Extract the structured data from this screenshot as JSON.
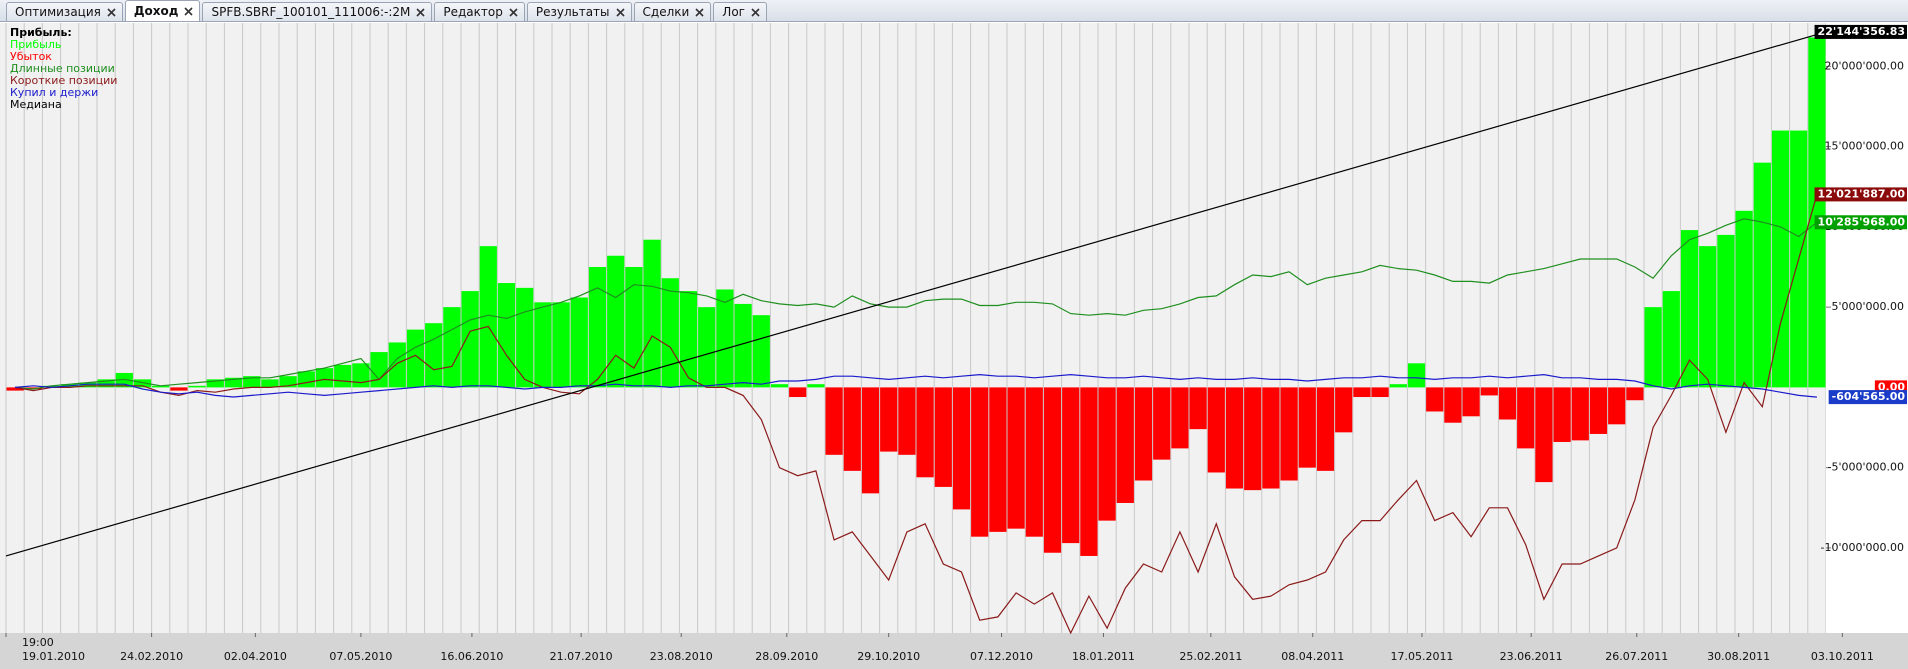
{
  "tabs": [
    "Оптимизация",
    "Доход",
    "SPFB.SBRF_100101_111006:-:2M",
    "Редактор",
    "Результаты",
    "Сделки",
    "Лог"
  ],
  "active_tab": 1,
  "chart_data": {
    "type": "bar",
    "legend_title": "Прибыль:",
    "xlim": [
      0,
      100
    ],
    "x_time_label": "19:00",
    "xticks": [
      {
        "value": 0,
        "label": "19.01.2010"
      },
      {
        "value": 8.0,
        "label": "24.02.2010"
      },
      {
        "value": 13.7,
        "label": "02.04.2010"
      },
      {
        "value": 19.5,
        "label": "07.05.2010"
      },
      {
        "value": 25.6,
        "label": "16.06.2010"
      },
      {
        "value": 31.6,
        "label": "21.07.2010"
      },
      {
        "value": 37.1,
        "label": "23.08.2010"
      },
      {
        "value": 42.9,
        "label": "28.09.2010"
      },
      {
        "value": 48.5,
        "label": "29.10.2010"
      },
      {
        "value": 54.7,
        "label": "07.12.2010"
      },
      {
        "value": 60.3,
        "label": "18.01.2011"
      },
      {
        "value": 66.2,
        "label": "25.02.2011"
      },
      {
        "value": 71.8,
        "label": "08.04.2011"
      },
      {
        "value": 77.8,
        "label": "17.05.2011"
      },
      {
        "value": 83.8,
        "label": "23.06.2011"
      },
      {
        "value": 89.6,
        "label": "26.07.2011"
      },
      {
        "value": 95.2,
        "label": "30.08.2011"
      },
      {
        "value": 100.9,
        "label": "03.10.2011"
      }
    ],
    "ylim": [
      -15300000,
      22700000
    ],
    "yticks": [
      {
        "value": -10000000,
        "label": "-10'000'000.00"
      },
      {
        "value": -5000000,
        "label": "-5'000'000.00"
      },
      {
        "value": 5000000,
        "label": "5'000'000.00"
      },
      {
        "value": 10000000,
        "label": "10'000'000.00"
      },
      {
        "value": 15000000,
        "label": "15'000'000.00"
      },
      {
        "value": 20000000,
        "label": "20'000'000.00"
      }
    ],
    "grid": "vertical",
    "value_markers": [
      {
        "value": 22144356.83,
        "label": "22'144'356.83",
        "color": "#000000"
      },
      {
        "value": 12021887,
        "label": "12'021'887.00",
        "color": "#8b0a0a"
      },
      {
        "value": 10285968,
        "label": "10'285'968.00",
        "color": "#00a000"
      },
      {
        "value": 0,
        "label": "0.00",
        "color": "#ff0000"
      },
      {
        "value": -604565,
        "label": "-604'565.00",
        "color": "#1a3cc8"
      }
    ],
    "series": [
      {
        "name": "Прибыль",
        "negative_name": "Убыток",
        "type": "bar",
        "color": "#00ff00",
        "negative_color": "#ff0000",
        "values": [
          -200000,
          -100000,
          100000,
          200000,
          300000,
          500000,
          900000,
          500000,
          100000,
          -200000,
          100000,
          500000,
          600000,
          700000,
          500000,
          700000,
          1000000,
          1200000,
          1400000,
          1500000,
          2200000,
          2800000,
          3600000,
          4000000,
          5000000,
          6000000,
          8800000,
          6500000,
          6200000,
          5300000,
          5300000,
          5600000,
          7500000,
          8200000,
          7500000,
          9200000,
          6800000,
          6000000,
          5000000,
          6100000,
          5200000,
          4500000,
          200000,
          -600000,
          200000,
          -4200000,
          -5200000,
          -6600000,
          -4000000,
          -4200000,
          -5600000,
          -6200000,
          -7600000,
          -9300000,
          -9000000,
          -8800000,
          -9300000,
          -10300000,
          -9700000,
          -10500000,
          -8300000,
          -7200000,
          -5800000,
          -4500000,
          -3800000,
          -2600000,
          -5300000,
          -6300000,
          -6400000,
          -6300000,
          -5800000,
          -5000000,
          -5200000,
          -2800000,
          -600000,
          -600000,
          200000,
          1500000,
          -1500000,
          -2200000,
          -1800000,
          -500000,
          -2000000,
          -3800000,
          -5900000,
          -3400000,
          -3300000,
          -2900000,
          -2300000,
          -800000,
          5000000,
          6000000,
          9800000,
          8800000,
          9500000,
          11000000,
          14000000,
          16000000,
          16000000,
          21800000
        ]
      },
      {
        "name": "Длинные позиции",
        "type": "line",
        "color": "#1f8f1f",
        "values": [
          0,
          -100000,
          100000,
          200000,
          300000,
          400000,
          500000,
          300000,
          100000,
          200000,
          300000,
          400000,
          500000,
          600000,
          600000,
          800000,
          1000000,
          1200000,
          1500000,
          1800000,
          500000,
          1800000,
          2500000,
          3000000,
          3600000,
          4200000,
          4500000,
          4300000,
          4700000,
          5000000,
          5300000,
          5700000,
          6200000,
          5600000,
          6400000,
          6300000,
          6000000,
          5900000,
          5700000,
          5300000,
          5800000,
          5400000,
          5200000,
          5100000,
          5200000,
          5000000,
          5700000,
          5200000,
          5000000,
          5000000,
          5400000,
          5500000,
          5500000,
          5100000,
          5100000,
          5300000,
          5300000,
          5200000,
          4600000,
          4500000,
          4600000,
          4500000,
          4800000,
          4900000,
          5200000,
          5600000,
          5700000,
          6400000,
          7000000,
          6900000,
          7200000,
          6400000,
          6800000,
          7000000,
          7200000,
          7600000,
          7400000,
          7300000,
          7000000,
          6600000,
          6600000,
          6500000,
          7000000,
          7200000,
          7400000,
          7700000,
          8000000,
          8000000,
          8000000,
          7500000,
          6800000,
          8200000,
          9200000,
          9600000,
          10100000,
          10500000,
          10300000,
          10000000,
          9400000,
          10285968
        ]
      },
      {
        "name": "Короткие позиции",
        "type": "line",
        "color": "#8b1a1a",
        "values": [
          0,
          -200000,
          0,
          0,
          100000,
          100000,
          100000,
          100000,
          -300000,
          -500000,
          -200000,
          -300000,
          -100000,
          0,
          0,
          100000,
          300000,
          500000,
          400000,
          300000,
          500000,
          1500000,
          2000000,
          1100000,
          1300000,
          3500000,
          3800000,
          2000000,
          500000,
          0,
          -300000,
          -400000,
          500000,
          2000000,
          1200000,
          3200000,
          2500000,
          600000,
          0,
          0,
          -500000,
          -2000000,
          -5000000,
          -5500000,
          -5200000,
          -9500000,
          -9000000,
          -10500000,
          -12000000,
          -9000000,
          -8500000,
          -11000000,
          -11500000,
          -14500000,
          -14300000,
          -12800000,
          -13500000,
          -12800000,
          -15300000,
          -13000000,
          -15000000,
          -12500000,
          -11000000,
          -11500000,
          -9000000,
          -11500000,
          -8500000,
          -11800000,
          -13200000,
          -13000000,
          -12300000,
          -12000000,
          -11500000,
          -9500000,
          -8300000,
          -8300000,
          -7000000,
          -5800000,
          -8300000,
          -7800000,
          -9300000,
          -7500000,
          -7500000,
          -9800000,
          -13200000,
          -11000000,
          -11000000,
          -10500000,
          -10000000,
          -7000000,
          -2500000,
          -500000,
          1700000,
          500000,
          -2800000,
          300000,
          -1200000,
          4000000,
          8000000,
          12021887
        ]
      },
      {
        "name": "Купил и держи",
        "type": "line",
        "color": "#1a1acd",
        "values": [
          0,
          100000,
          0,
          100000,
          200000,
          200000,
          200000,
          -100000,
          -300000,
          -400000,
          -300000,
          -500000,
          -600000,
          -500000,
          -400000,
          -300000,
          -400000,
          -500000,
          -400000,
          -300000,
          -200000,
          -100000,
          0,
          100000,
          0,
          100000,
          100000,
          0,
          -100000,
          0,
          0,
          100000,
          100000,
          200000,
          100000,
          100000,
          0,
          100000,
          100000,
          200000,
          300000,
          200000,
          400000,
          400000,
          500000,
          700000,
          700000,
          600000,
          500000,
          600000,
          700000,
          600000,
          700000,
          800000,
          700000,
          700000,
          600000,
          700000,
          800000,
          700000,
          600000,
          600000,
          700000,
          600000,
          500000,
          600000,
          500000,
          500000,
          600000,
          500000,
          500000,
          400000,
          500000,
          600000,
          600000,
          700000,
          600000,
          600000,
          500000,
          600000,
          600000,
          700000,
          600000,
          700000,
          800000,
          600000,
          600000,
          500000,
          500000,
          400000,
          100000,
          -100000,
          100000,
          200000,
          100000,
          0,
          -100000,
          -300000,
          -500000,
          -604565
        ]
      },
      {
        "name": "Медиана",
        "type": "line",
        "color": "#000000",
        "x": [
          0,
          100
        ],
        "values": [
          -10500000,
          22144356.83
        ]
      }
    ]
  }
}
